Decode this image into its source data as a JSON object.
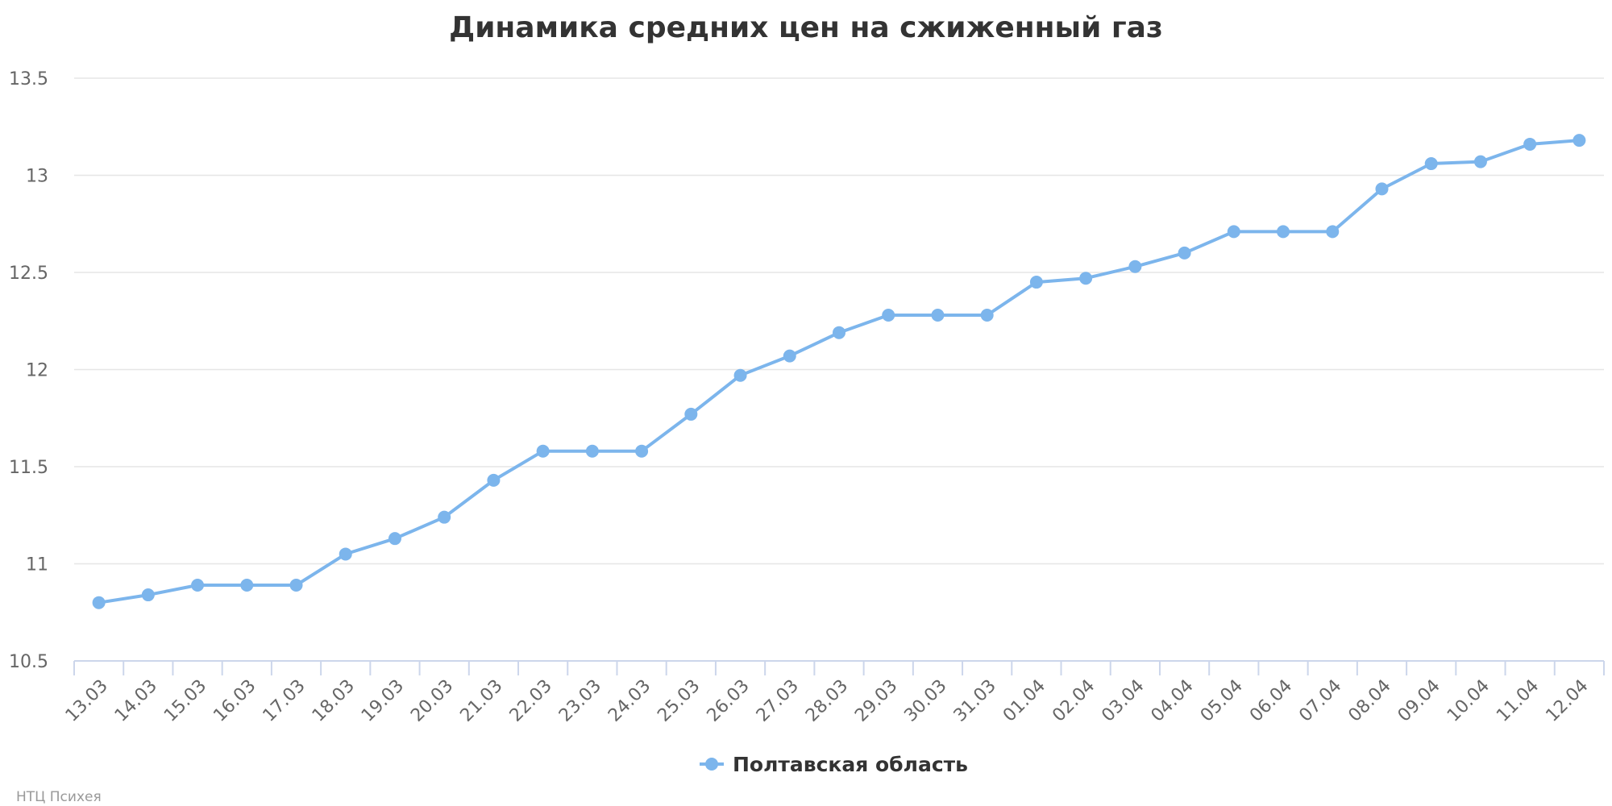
{
  "chart_data": {
    "type": "line",
    "title": "Динамика средних цен на сжиженный газ",
    "xlabel": "",
    "ylabel": "",
    "categories": [
      "13.03",
      "14.03",
      "15.03",
      "16.03",
      "17.03",
      "18.03",
      "19.03",
      "20.03",
      "21.03",
      "22.03",
      "23.03",
      "24.03",
      "25.03",
      "26.03",
      "27.03",
      "28.03",
      "29.03",
      "30.03",
      "31.03",
      "01.04",
      "02.04",
      "03.04",
      "04.04",
      "05.04",
      "06.04",
      "07.04",
      "08.04",
      "09.04",
      "10.04",
      "11.04",
      "12.04"
    ],
    "series": [
      {
        "name": "Полтавская область",
        "color": "#7cb5ec",
        "values": [
          10.8,
          10.84,
          10.89,
          10.89,
          10.89,
          11.05,
          11.13,
          11.24,
          11.43,
          11.58,
          11.58,
          11.58,
          11.77,
          11.97,
          12.07,
          12.19,
          12.28,
          12.28,
          12.28,
          12.45,
          12.47,
          12.53,
          12.6,
          12.71,
          12.71,
          12.71,
          12.93,
          13.06,
          13.07,
          13.16,
          13.18
        ]
      }
    ],
    "ylim": [
      10.5,
      13.5
    ],
    "yticks": [
      "10.5",
      "11",
      "11.5",
      "12",
      "12.5",
      "13",
      "13.5"
    ],
    "grid": true,
    "legend_position": "bottom-center",
    "credits": "НТЦ Психея"
  }
}
